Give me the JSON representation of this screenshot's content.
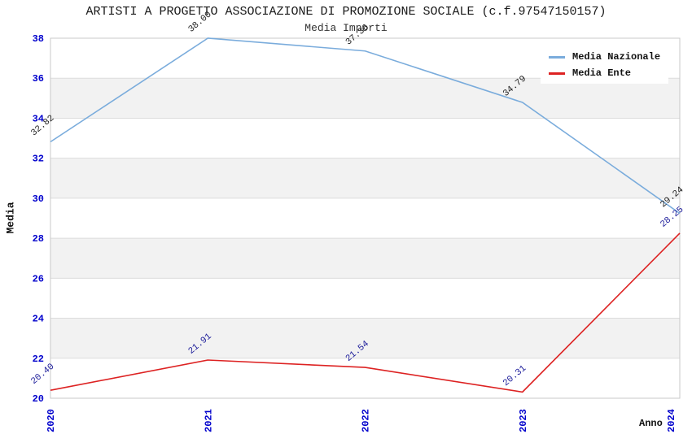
{
  "chart": {
    "title": "ARTISTI A PROGETTO ASSOCIAZIONE DI PROMOZIONE SOCIALE (c.f.97547150157)",
    "subtitle": "Media Importi"
  },
  "chart_data": {
    "type": "line",
    "title": "ARTISTI A PROGETTO ASSOCIAZIONE DI PROMOZIONE SOCIALE (c.f.97547150157)",
    "subtitle": "Media Importi",
    "categories": [
      "2020",
      "2021",
      "2022",
      "2023",
      "2024"
    ],
    "series": [
      {
        "name": "Media Nazionale",
        "values": [
          32.82,
          38.0,
          37.36,
          34.79,
          29.24
        ],
        "color": "#7AACDC",
        "label_color": "#1a1a1a"
      },
      {
        "name": "Media Ente",
        "values": [
          20.4,
          21.91,
          21.54,
          20.31,
          28.25
        ],
        "color": "#DD2222",
        "label_color": "#1A1A99"
      }
    ],
    "xlabel": "Anno",
    "ylabel": "Media",
    "ylim": [
      20,
      38
    ],
    "ytick_step": 2,
    "grid": "horizontal",
    "legend_position": "top-right",
    "band_colors": [
      "#ffffff",
      "#f2f2f2"
    ],
    "gridline_color": "#dcdcdc",
    "border_color": "#c8c8c8",
    "tick_label_color": "#0000CC"
  }
}
